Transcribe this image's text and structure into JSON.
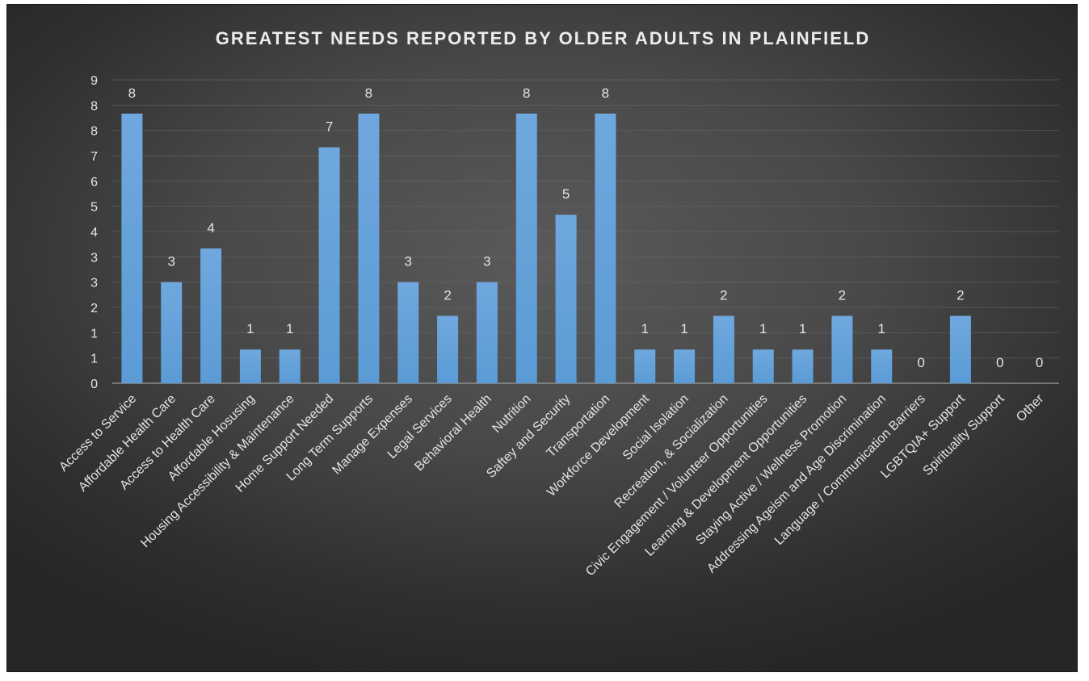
{
  "chart_data": {
    "type": "bar",
    "title": "GREATEST NEEDS REPORTED BY OLDER ADULTS IN PLAINFIELD",
    "xlabel": "",
    "ylabel": "",
    "ylim": [
      0,
      9
    ],
    "yticks": [
      "0",
      "1",
      "1",
      "2",
      "3",
      "3",
      "4",
      "5",
      "6",
      "7",
      "8",
      "8",
      "9"
    ],
    "grid": true,
    "legend": "none",
    "bar_color": "#5b9bd5",
    "categories": [
      "Access to Service",
      "Affordable Health Care",
      "Access to Health Care",
      "Affordable Hosusing",
      "Housing Accessibility & Maintenance",
      "Home Support Needed",
      "Long Term Supports",
      "Manage Expenses",
      "Legal Services",
      "Behavioral Health",
      "Nutrition",
      "Saftey and Security",
      "Transportation",
      "Workforce Development",
      "Social Isolation",
      "Recreation, & Socialization",
      "Civic Engagement / Volunteer Opportunities",
      "Learning & Development Opportunities",
      "Staying Active / Wellness Promotion",
      "Addressing Ageism and Age Discrimination",
      "Language / Communication Barriers",
      "LGBTQIA+ Support",
      "Spirituality Support",
      "Other"
    ],
    "values": [
      8,
      3,
      4,
      1,
      1,
      7,
      8,
      3,
      2,
      3,
      8,
      5,
      8,
      1,
      1,
      2,
      1,
      1,
      2,
      1,
      0,
      2,
      0,
      0
    ]
  }
}
